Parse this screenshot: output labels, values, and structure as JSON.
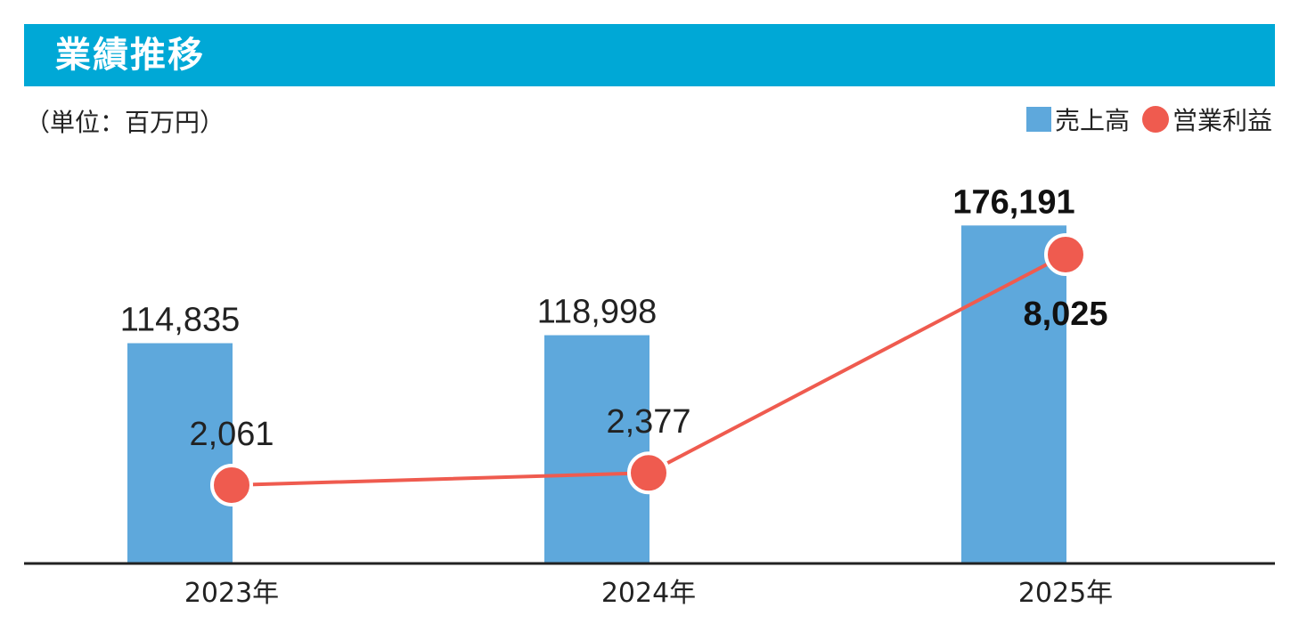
{
  "header": {
    "title": "業績推移"
  },
  "unit_label": "（単位：百万円）",
  "legend": {
    "sales": "売上高",
    "profit": "営業利益"
  },
  "colors": {
    "title_bar": "#00a8d6",
    "bar": "#5ea8dc",
    "line": "#ef5b4f",
    "axis": "#222222"
  },
  "chart_data": {
    "type": "bar",
    "categories": [
      "2023年",
      "2024年",
      "2025年"
    ],
    "series": [
      {
        "name": "売上高",
        "type": "bar",
        "values": [
          114835,
          118998,
          176191
        ],
        "labels": [
          "114,835",
          "118,998",
          "176,191"
        ]
      },
      {
        "name": "営業利益",
        "type": "line",
        "values": [
          2061,
          2377,
          8025
        ],
        "labels": [
          "2,061",
          "2,377",
          "8,025"
        ]
      }
    ],
    "legend_position": "top-right",
    "grid": false
  }
}
